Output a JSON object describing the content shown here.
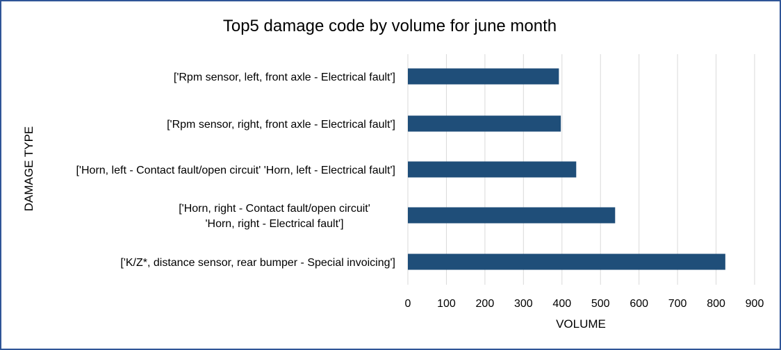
{
  "chart_data": {
    "type": "bar",
    "orientation": "horizontal",
    "title": "Top5 damage code by volume for june month",
    "xlabel": "VOLUME",
    "ylabel": "DAMAGE TYPE",
    "xlim": [
      0,
      900
    ],
    "xticks": [
      "0",
      "100",
      "200",
      "300",
      "400",
      "500",
      "600",
      "700",
      "800",
      "900"
    ],
    "grid": true,
    "bar_color": "#1f4e79",
    "categories": [
      [
        "['Rpm sensor, left, front axle - Electrical fault']"
      ],
      [
        "['Rpm sensor, right, front axle - Electrical fault']"
      ],
      [
        "['Horn, left - Contact fault/open circuit' 'Horn, left - Electrical fault']"
      ],
      [
        "['Horn, right - Contact fault/open circuit'",
        "'Horn, right - Electrical fault']"
      ],
      [
        "['K/Z*, distance sensor, rear bumper - Special invoicing']"
      ]
    ],
    "values": [
      392,
      397,
      437,
      538,
      824
    ]
  }
}
